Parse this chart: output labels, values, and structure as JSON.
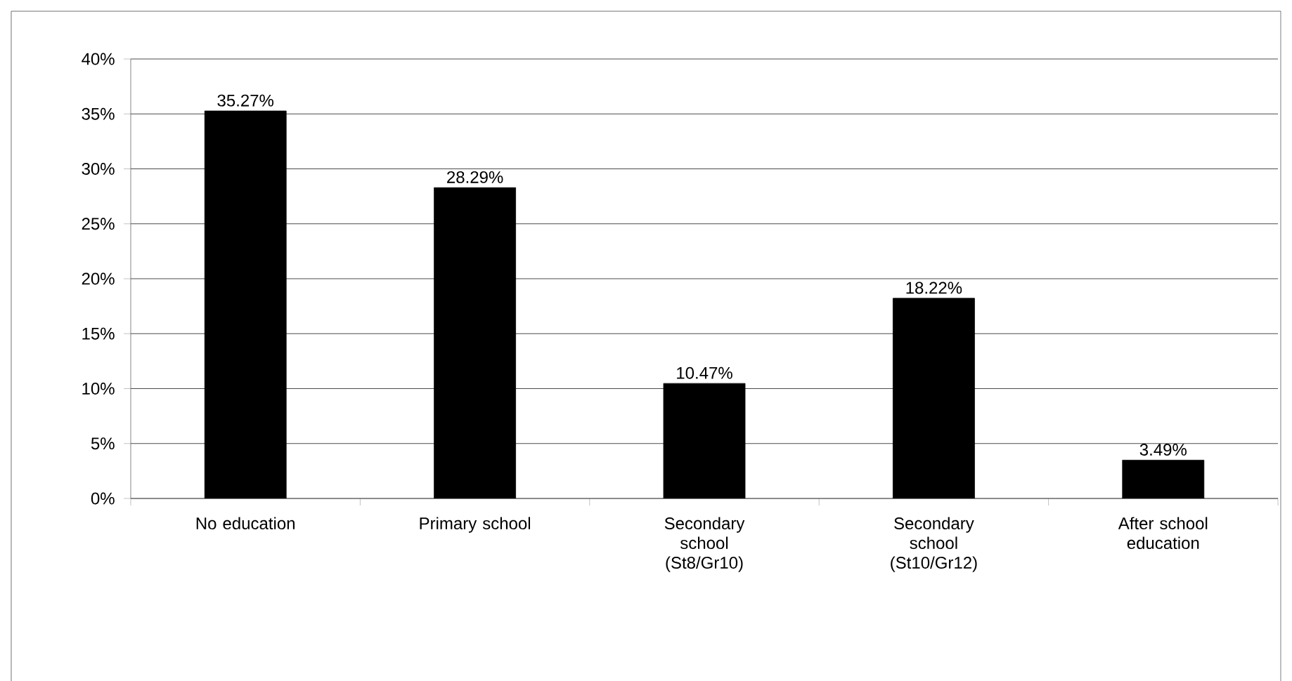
{
  "chart_data": {
    "type": "bar",
    "categories": [
      "No education",
      "Primary school",
      "Secondary school (St8/Gr10)",
      "Secondary school (St10/Gr12)",
      "After school education"
    ],
    "values": [
      35.27,
      28.29,
      10.47,
      18.22,
      3.49
    ],
    "value_labels": [
      "35.27%",
      "28.29%",
      "10.47%",
      "18.22%",
      "3.49%"
    ],
    "color": "#000000",
    "ylim": [
      0,
      40
    ],
    "yticks": [
      {
        "value": 0,
        "label": "0%"
      },
      {
        "value": 5,
        "label": "5%"
      },
      {
        "value": 10,
        "label": "10%"
      },
      {
        "value": 15,
        "label": "15%"
      },
      {
        "value": 20,
        "label": "20%"
      },
      {
        "value": 25,
        "label": "25%"
      },
      {
        "value": 30,
        "label": "30%"
      },
      {
        "value": 35,
        "label": "35%"
      },
      {
        "value": 40,
        "label": "40%"
      }
    ],
    "grid": "y"
  }
}
